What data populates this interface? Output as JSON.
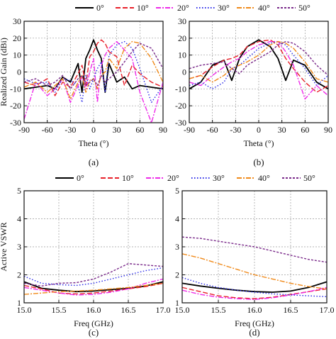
{
  "legend": {
    "entries": [
      {
        "label": "0°",
        "color": "#000000",
        "dash": "solid"
      },
      {
        "label": "10°",
        "color": "#e8202a",
        "dash": "dash"
      },
      {
        "label": "20°",
        "color": "#ee2ae8",
        "dash": "dashdot"
      },
      {
        "label": "30°",
        "color": "#2a2ae8",
        "dash": "dot"
      },
      {
        "label": "40°",
        "color": "#f08a1a",
        "dash": "dashdot"
      },
      {
        "label": "50°",
        "color": "#7a2a8a",
        "dash": "shortdash"
      }
    ]
  },
  "chart_data": [
    {
      "type": "line",
      "panel_label": "(a)",
      "xlabel": "Theta (°)",
      "ylabel": "Realized Gain (dBi)",
      "xlim": [
        -90,
        90
      ],
      "ylim": [
        -30,
        30
      ],
      "xticks": [
        -90,
        -60,
        -30,
        0,
        30,
        60,
        90
      ],
      "yticks": [
        -30,
        -20,
        -10,
        0,
        10,
        20,
        30
      ],
      "grid": true,
      "x": [
        -90,
        -75,
        -60,
        -50,
        -40,
        -30,
        -20,
        -15,
        -10,
        -5,
        0,
        5,
        10,
        15,
        20,
        30,
        40,
        50,
        60,
        75,
        90
      ],
      "series": [
        {
          "name": "0°",
          "values": [
            -10,
            -9,
            -8,
            -10,
            -3,
            -6,
            5,
            -12,
            8,
            13,
            19,
            13,
            8,
            -12,
            5,
            -6,
            -3,
            -10,
            -8,
            -9,
            -10
          ]
        },
        {
          "name": "10°",
          "values": [
            -6,
            -8,
            -4,
            -14,
            -6,
            -9,
            -1,
            4,
            -8,
            9,
            12,
            17,
            19,
            17,
            12,
            9,
            -8,
            4,
            -1,
            -6,
            -9
          ]
        },
        {
          "name": "20°",
          "values": [
            -28,
            -6,
            -14,
            -10,
            -4,
            -18,
            -8,
            -3,
            -10,
            0,
            8,
            -18,
            4,
            10,
            14,
            18,
            13,
            8,
            -12,
            -30,
            -6
          ]
        },
        {
          "name": "30°",
          "values": [
            -4,
            -7,
            -6,
            -12,
            -4,
            -5,
            -8,
            -18,
            -2,
            -10,
            -4,
            2,
            6,
            -12,
            10,
            16,
            18,
            14,
            2,
            -18,
            -8
          ]
        },
        {
          "name": "40°",
          "values": [
            -9,
            -6,
            -12,
            -8,
            -4,
            -16,
            -6,
            -2,
            -12,
            -5,
            -4,
            -10,
            -2,
            0,
            8,
            2,
            14,
            18,
            17,
            8,
            -6
          ]
        },
        {
          "name": "50°",
          "values": [
            -6,
            -4,
            -8,
            -6,
            -2,
            -10,
            -4,
            -2,
            -8,
            -6,
            -4,
            -8,
            -2,
            -6,
            -4,
            0,
            6,
            12,
            17,
            14,
            2
          ]
        }
      ]
    },
    {
      "type": "line",
      "panel_label": "(b)",
      "xlabel": "Theta (°)",
      "ylabel": "",
      "xlim": [
        -90,
        90
      ],
      "ylim": [
        -30,
        30
      ],
      "xticks": [
        -90,
        -60,
        -30,
        0,
        30,
        60,
        90
      ],
      "yticks": [
        -30,
        -20,
        -10,
        0,
        10,
        20,
        30
      ],
      "grid": true,
      "x": [
        -90,
        -75,
        -60,
        -45,
        -35,
        -25,
        -15,
        0,
        15,
        25,
        35,
        45,
        60,
        75,
        90
      ],
      "series": [
        {
          "name": "0°",
          "values": [
            -10,
            -6,
            4,
            7,
            -5,
            8,
            15,
            19,
            15,
            8,
            -5,
            7,
            4,
            -6,
            -10
          ]
        },
        {
          "name": "10°",
          "values": [
            -4,
            -2,
            3,
            7,
            8,
            10,
            15,
            18,
            19,
            16,
            8,
            2,
            -6,
            -12,
            -8
          ]
        },
        {
          "name": "20°",
          "values": [
            -6,
            -8,
            -2,
            3,
            6,
            8,
            12,
            16,
            18,
            18,
            12,
            4,
            -16,
            -8,
            -14
          ]
        },
        {
          "name": "30°",
          "values": [
            -8,
            -6,
            -10,
            -6,
            2,
            4,
            8,
            14,
            17,
            18,
            16,
            10,
            2,
            -8,
            -2
          ]
        },
        {
          "name": "40°",
          "values": [
            -4,
            -2,
            -6,
            -2,
            2,
            4,
            6,
            10,
            16,
            18,
            17,
            14,
            6,
            -4,
            -6
          ]
        },
        {
          "name": "50°",
          "values": [
            2,
            4,
            5,
            6,
            2,
            -1,
            4,
            8,
            12,
            16,
            18,
            17,
            12,
            4,
            -2
          ]
        }
      ]
    },
    {
      "type": "line",
      "panel_label": "(c)",
      "xlabel": "Freq (GHz)",
      "ylabel": "Active VSWR",
      "xlim": [
        15.0,
        17.0
      ],
      "ylim": [
        1,
        5
      ],
      "xticks": [
        15.0,
        15.5,
        16.0,
        16.5,
        17.0
      ],
      "xtick_labels": [
        "15.0",
        "15.5",
        "16.0",
        "16.5",
        "17.0"
      ],
      "yticks": [
        1,
        2,
        3,
        4,
        5
      ],
      "grid": true,
      "x": [
        15.0,
        15.25,
        15.5,
        15.75,
        16.0,
        16.25,
        16.5,
        16.75,
        17.0
      ],
      "series": [
        {
          "name": "0°",
          "values": [
            1.75,
            1.52,
            1.45,
            1.4,
            1.42,
            1.47,
            1.52,
            1.6,
            1.75
          ]
        },
        {
          "name": "10°",
          "values": [
            1.62,
            1.5,
            1.35,
            1.32,
            1.35,
            1.42,
            1.5,
            1.58,
            1.7
          ]
        },
        {
          "name": "20°",
          "values": [
            1.55,
            1.45,
            1.35,
            1.28,
            1.3,
            1.38,
            1.5,
            1.7,
            1.85
          ]
        },
        {
          "name": "30°",
          "values": [
            1.95,
            1.7,
            1.65,
            1.62,
            1.7,
            1.85,
            2.0,
            2.15,
            2.25
          ]
        },
        {
          "name": "40°",
          "values": [
            1.3,
            1.35,
            1.4,
            1.42,
            1.45,
            1.5,
            1.55,
            1.62,
            1.7
          ]
        },
        {
          "name": "50°",
          "values": [
            1.7,
            1.6,
            1.7,
            1.72,
            1.85,
            2.1,
            2.4,
            2.35,
            2.3
          ]
        }
      ]
    },
    {
      "type": "line",
      "panel_label": "(d)",
      "xlabel": "Freq (GHz)",
      "ylabel": "",
      "xlim": [
        15.0,
        17.0
      ],
      "ylim": [
        1,
        5
      ],
      "xticks": [
        15.0,
        15.5,
        16.0,
        16.5,
        17.0
      ],
      "xtick_labels": [
        "15.0",
        "15.5",
        "16.0",
        "16.5",
        "17.0"
      ],
      "yticks": [
        1,
        2,
        3,
        4,
        5
      ],
      "grid": true,
      "x": [
        15.0,
        15.25,
        15.5,
        15.75,
        16.0,
        16.25,
        16.5,
        16.75,
        17.0
      ],
      "series": [
        {
          "name": "0°",
          "values": [
            1.7,
            1.6,
            1.52,
            1.45,
            1.4,
            1.38,
            1.42,
            1.55,
            1.75
          ]
        },
        {
          "name": "10°",
          "values": [
            1.55,
            1.4,
            1.25,
            1.18,
            1.15,
            1.2,
            1.3,
            1.4,
            1.5
          ]
        },
        {
          "name": "20°",
          "values": [
            1.45,
            1.3,
            1.2,
            1.15,
            1.12,
            1.18,
            1.28,
            1.4,
            1.55
          ]
        },
        {
          "name": "30°",
          "values": [
            1.9,
            1.7,
            1.55,
            1.45,
            1.38,
            1.32,
            1.28,
            1.25,
            1.22
          ]
        },
        {
          "name": "40°",
          "values": [
            2.75,
            2.6,
            2.4,
            2.2,
            2.0,
            1.85,
            1.7,
            1.58,
            1.5
          ]
        },
        {
          "name": "50°",
          "values": [
            3.35,
            3.3,
            3.2,
            3.1,
            3.0,
            2.85,
            2.7,
            2.55,
            2.45
          ]
        }
      ]
    }
  ]
}
